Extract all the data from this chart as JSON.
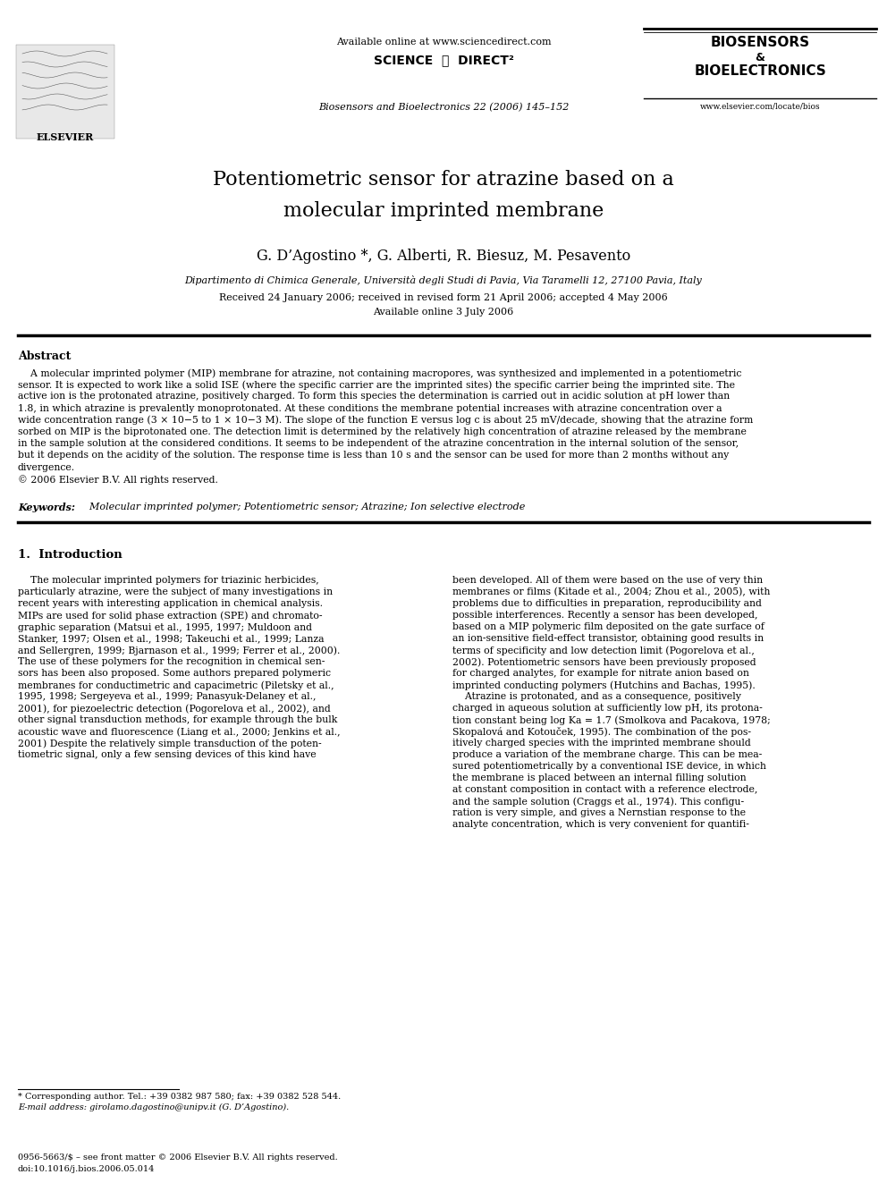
{
  "bg_color": "#ffffff",
  "title_line1": "Potentiometric sensor for atrazine based on a",
  "title_line2": "molecular imprinted membrane",
  "authors": "G. D’Agostino *, G. Alberti, R. Biesuz, M. Pesavento",
  "affiliation": "Dipartimento di Chimica Generale, Università degli Studi di Pavia, Via Taramelli 12, 27100 Pavia, Italy",
  "date_line1": "Received 24 January 2006; received in revised form 21 April 2006; accepted 4 May 2006",
  "date_line2": "Available online 3 July 2006",
  "journal_header": "Available online at www.sciencedirect.com",
  "science_direct": "science  ⓐ  direct²",
  "journal_name": "Biosensors and Bioelectronics 22 (2006) 145–152",
  "journal_logo_line1": "BIOSENSORS",
  "journal_logo_line2": "&",
  "journal_logo_line3": "BIOELECTRONICS",
  "journal_url": "www.elsevier.com/locate/bios",
  "elsevier_text": "ELSEVIER",
  "abstract_title": "Abstract",
  "abstract_lines": [
    "    A molecular imprinted polymer (MIP) membrane for atrazine, not containing macropores, was synthesized and implemented in a potentiometric",
    "sensor. It is expected to work like a solid ISE (where the specific carrier are the imprinted sites) the specific carrier being the imprinted site. The",
    "active ion is the protonated atrazine, positively charged. To form this species the determination is carried out in acidic solution at pH lower than",
    "1.8, in which atrazine is prevalently monoprotonated. At these conditions the membrane potential increases with atrazine concentration over a",
    "wide concentration range (3 × 10−5 to 1 × 10−3 M). The slope of the function E versus log c is about 25 mV/decade, showing that the atrazine form",
    "sorbed on MIP is the biprotonated one. The detection limit is determined by the relatively high concentration of atrazine released by the membrane",
    "in the sample solution at the considered conditions. It seems to be independent of the atrazine concentration in the internal solution of the sensor,",
    "but it depends on the acidity of the solution. The response time is less than 10 s and the sensor can be used for more than 2 months without any",
    "divergence.",
    "© 2006 Elsevier B.V. All rights reserved."
  ],
  "keywords_label": "Keywords:",
  "keywords_text": "  Molecular imprinted polymer; Potentiometric sensor; Atrazine; Ion selective electrode",
  "section1_title": "1.  Introduction",
  "col1_lines": [
    "    The molecular imprinted polymers for triazinic herbicides,",
    "particularly atrazine, were the subject of many investigations in",
    "recent years with interesting application in chemical analysis.",
    "MIPs are used for solid phase extraction (SPE) and chromato-",
    "graphic separation (Matsui et al., 1995, 1997; Muldoon and",
    "Stanker, 1997; Olsen et al., 1998; Takeuchi et al., 1999; Lanza",
    "and Sellergren, 1999; Bjarnason et al., 1999; Ferrer et al., 2000).",
    "The use of these polymers for the recognition in chemical sen-",
    "sors has been also proposed. Some authors prepared polymeric",
    "membranes for conductimetric and capacimetric (Piletsky et al.,",
    "1995, 1998; Sergeyeva et al., 1999; Panasyuk-Delaney et al.,",
    "2001), for piezoelectric detection (Pogorelova et al., 2002), and",
    "other signal transduction methods, for example through the bulk",
    "acoustic wave and fluorescence (Liang et al., 2000; Jenkins et al.,",
    "2001) Despite the relatively simple transduction of the poten-",
    "tiometric signal, only a few sensing devices of this kind have"
  ],
  "col2_lines": [
    "been developed. All of them were based on the use of very thin",
    "membranes or films (Kitade et al., 2004; Zhou et al., 2005), with",
    "problems due to difficulties in preparation, reproducibility and",
    "possible interferences. Recently a sensor has been developed,",
    "based on a MIP polymeric film deposited on the gate surface of",
    "an ion-sensitive field-effect transistor, obtaining good results in",
    "terms of specificity and low detection limit (Pogorelova et al.,",
    "2002). Potentiometric sensors have been previously proposed",
    "for charged analytes, for example for nitrate anion based on",
    "imprinted conducting polymers (Hutchins and Bachas, 1995).",
    "    Atrazine is protonated, and as a consequence, positively",
    "charged in aqueous solution at sufficiently low pH, its protona-",
    "tion constant being log Ka = 1.7 (Smolkova and Pacakova, 1978;",
    "Skopalová and Kotouček, 1995). The combination of the pos-",
    "itively charged species with the imprinted membrane should",
    "produce a variation of the membrane charge. This can be mea-",
    "sured potentiometrically by a conventional ISE device, in which",
    "the membrane is placed between an internal filling solution",
    "at constant composition in contact with a reference electrode,",
    "and the sample solution (Craggs et al., 1974). This configu-",
    "ration is very simple, and gives a Nernstian response to the",
    "analyte concentration, which is very convenient for quantifi-"
  ],
  "footnote_line": "* Corresponding author. Tel.: +39 0382 987 580; fax: +39 0382 528 544.",
  "footnote_email": "E-mail address: girolamo.dagostino@unipv.it (G. D’Agostino).",
  "footer1": "0956-5663/$ – see front matter © 2006 Elsevier B.V. All rights reserved.",
  "footer2": "doi:10.1016/j.bios.2006.05.014",
  "link_color": "#0000cc"
}
